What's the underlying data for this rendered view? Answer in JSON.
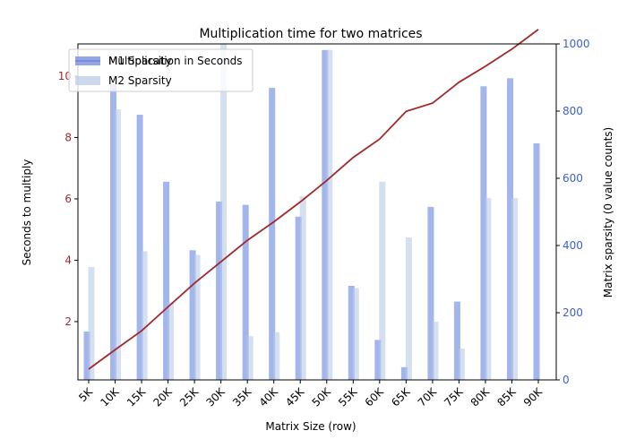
{
  "chart_data": {
    "type": "bar",
    "title": "Multiplication time for two matrices",
    "xlabel": "Matrix Size (row)",
    "ylabel_left": "Seconds to multiply",
    "ylabel_right": "Matrix sparsity (0 value counts)",
    "categories": [
      "5K",
      "10K",
      "15K",
      "20K",
      "25K",
      "30K",
      "35K",
      "40K",
      "45K",
      "50K",
      "55K",
      "60K",
      "65K",
      "70K",
      "75K",
      "80K",
      "85K",
      "90K"
    ],
    "line_series": {
      "name": "Multiplication in Seconds",
      "axis": "left",
      "color": "#a0292b",
      "values": [
        0.45,
        1.08,
        1.7,
        2.48,
        3.25,
        3.95,
        4.65,
        5.25,
        5.9,
        6.6,
        7.35,
        7.95,
        8.85,
        9.12,
        9.8,
        10.32,
        10.88,
        11.52
      ]
    },
    "series": [
      {
        "name": "M1 Sparsity",
        "axis": "right",
        "color": "#7b96e6",
        "values": [
          144,
          881,
          789,
          590,
          386,
          531,
          521,
          869,
          486,
          982,
          280,
          119,
          38,
          515,
          233,
          874,
          898,
          704
        ]
      },
      {
        "name": "M2 Sparsity",
        "axis": "right",
        "color": "#b8c9e6",
        "values": [
          336,
          805,
          383,
          231,
          372,
          1000,
          130,
          142,
          546,
          982,
          273,
          590,
          424,
          173,
          93,
          541,
          541,
          0
        ]
      }
    ],
    "ylim_left": [
      0.1,
      11.05
    ],
    "yticks_left": [
      2,
      4,
      6,
      8,
      10
    ],
    "ylim_right": [
      0,
      1000
    ],
    "yticks_right": [
      0,
      200,
      400,
      600,
      800,
      1000
    ],
    "left_axis_color": "#a0292b",
    "right_axis_color": "#3b5fd0",
    "grid": false,
    "legend_position": "top-left",
    "legend_entries": [
      {
        "name": "Multiplication in Seconds",
        "color": "#a0292b",
        "kind": "line"
      },
      {
        "name": "M1 Sparsity",
        "color": "#7b96e6",
        "kind": "bar"
      },
      {
        "name": "M2 Sparsity",
        "color": "#b8c9e6",
        "kind": "bar"
      }
    ]
  }
}
